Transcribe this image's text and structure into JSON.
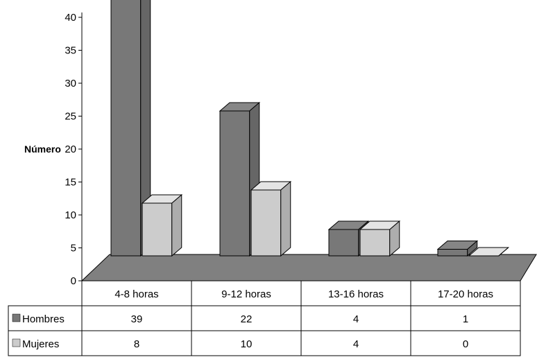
{
  "chart_data": {
    "type": "bar",
    "ylabel": "Número",
    "ylim": [
      0,
      40
    ],
    "ytick_step": 5,
    "grid": false,
    "legend_placement": "data-table-left",
    "categories": [
      "4-8 horas",
      "9-12 horas",
      "13-16 horas",
      "17-20 horas"
    ],
    "series": [
      {
        "name": "Hombres",
        "color": "#787878",
        "values": [
          39,
          22,
          4,
          1
        ]
      },
      {
        "name": "Mujeres",
        "color": "#cccccc",
        "values": [
          8,
          10,
          4,
          0
        ]
      }
    ],
    "table": {
      "rows": [
        {
          "label": "Hombres",
          "cells": [
            "39",
            "22",
            "4",
            "1"
          ]
        },
        {
          "label": "Mujeres",
          "cells": [
            "8",
            "10",
            "4",
            "0"
          ]
        }
      ]
    },
    "floor_color": "#808080"
  }
}
